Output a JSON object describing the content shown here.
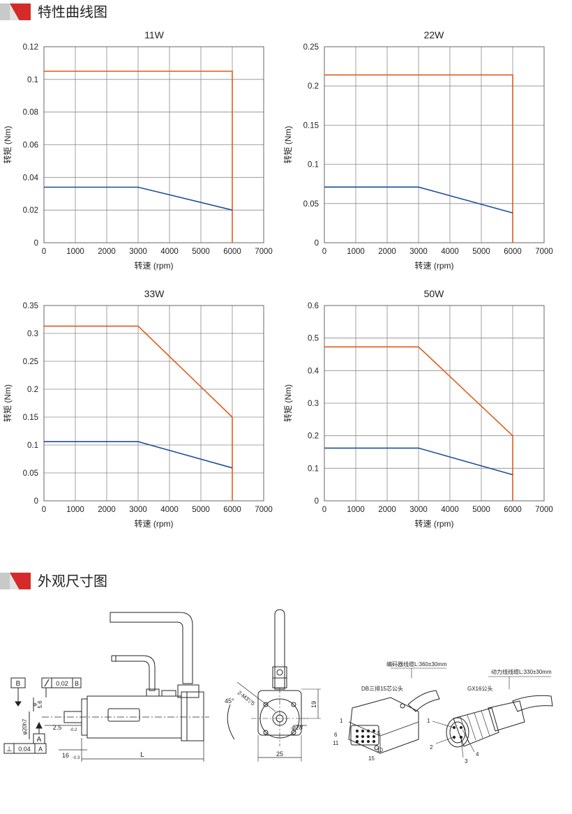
{
  "sections": {
    "curves_title": "特性曲线图",
    "dimensions_title": "外观尺寸图"
  },
  "colors": {
    "rated": "#1f4e9a",
    "peak": "#e05a1a",
    "grid": "#888888",
    "accent": "#d42a2a"
  },
  "chart_data": [
    {
      "type": "line",
      "title": "11W",
      "xlabel": "转速 (rpm)",
      "ylabel": "转矩 (Nm)",
      "xlim": [
        0,
        7000
      ],
      "ylim": [
        0,
        0.12
      ],
      "xticks": [
        "0",
        "1000",
        "2000",
        "3000",
        "4000",
        "5000",
        "6000",
        "7000"
      ],
      "yticks": [
        "0",
        "0.02",
        "0.04",
        "0.06",
        "0.08",
        "0.1",
        "0.12"
      ],
      "ytick_values": [
        0,
        0.02,
        0.04,
        0.06,
        0.08,
        0.1,
        0.12
      ],
      "series": [
        {
          "name": "peak",
          "x": [
            0,
            6000,
            6000
          ],
          "y": [
            0.105,
            0.105,
            0
          ]
        },
        {
          "name": "rated",
          "x": [
            0,
            3000,
            6000
          ],
          "y": [
            0.034,
            0.034,
            0.02
          ]
        }
      ]
    },
    {
      "type": "line",
      "title": "22W",
      "xlabel": "转速 (rpm)",
      "ylabel": "转矩 (Nm)",
      "xlim": [
        0,
        7000
      ],
      "ylim": [
        0,
        0.25
      ],
      "xticks": [
        "0",
        "1000",
        "2000",
        "3000",
        "4000",
        "5000",
        "6000",
        "7000"
      ],
      "yticks": [
        "0",
        "0.05",
        "0.1",
        "0.15",
        "0.2",
        "0.25"
      ],
      "ytick_values": [
        0,
        0.05,
        0.1,
        0.15,
        0.2,
        0.25
      ],
      "series": [
        {
          "name": "peak",
          "x": [
            0,
            6000,
            6000
          ],
          "y": [
            0.214,
            0.214,
            0
          ]
        },
        {
          "name": "rated",
          "x": [
            0,
            3000,
            6000
          ],
          "y": [
            0.071,
            0.071,
            0.038
          ]
        }
      ]
    },
    {
      "type": "line",
      "title": "33W",
      "xlabel": "转速 (rpm)",
      "ylabel": "转矩 (Nm)",
      "xlim": [
        0,
        7000
      ],
      "ylim": [
        0,
        0.35
      ],
      "xticks": [
        "0",
        "1000",
        "2000",
        "3000",
        "4000",
        "5000",
        "6000",
        "7000"
      ],
      "yticks": [
        "0",
        "0.05",
        "0.1",
        "0.15",
        "0.2",
        "0.25",
        "0.3",
        "0.35"
      ],
      "ytick_values": [
        0,
        0.05,
        0.1,
        0.15,
        0.2,
        0.25,
        0.3,
        0.35
      ],
      "series": [
        {
          "name": "peak",
          "x": [
            0,
            3000,
            6000,
            6000
          ],
          "y": [
            0.313,
            0.313,
            0.15,
            0
          ]
        },
        {
          "name": "rated",
          "x": [
            0,
            3000,
            6000
          ],
          "y": [
            0.106,
            0.106,
            0.059
          ]
        }
      ]
    },
    {
      "type": "line",
      "title": "50W",
      "xlabel": "转速 (rpm)",
      "ylabel": "转矩 (Nm)",
      "xlim": [
        0,
        7000
      ],
      "ylim": [
        0,
        0.6
      ],
      "xticks": [
        "0",
        "1000",
        "2000",
        "3000",
        "4000",
        "5000",
        "6000",
        "7000"
      ],
      "yticks": [
        "0",
        "0.1",
        "0.2",
        "0.3",
        "0.4",
        "0.5",
        "0.6"
      ],
      "ytick_values": [
        0,
        0.1,
        0.2,
        0.3,
        0.4,
        0.5,
        0.6
      ],
      "series": [
        {
          "name": "peak",
          "x": [
            0,
            3000,
            6000,
            6000
          ],
          "y": [
            0.473,
            0.473,
            0.2,
            0
          ]
        },
        {
          "name": "rated",
          "x": [
            0,
            3000,
            6000
          ],
          "y": [
            0.162,
            0.162,
            0.08
          ]
        }
      ]
    }
  ],
  "drawing": {
    "datum_b": "B",
    "datum_a": "A",
    "runout_value": "0.02",
    "perp_symbol": "⊥",
    "perp_value": "0.04",
    "dim_shaft_len": "5.6",
    "dim_shaft_dia": "φ20h7",
    "dim_step": "2.5",
    "dim_step_tol": "-0.2",
    "dim_flange": "16",
    "dim_flange_tol": "-0.3",
    "dim_length": "L",
    "dim_holes": "2-M3▽5",
    "dim_angle": "45°",
    "dim_bolt_circle": "φ28",
    "dim_height": "19",
    "dim_width": "25",
    "encoder_cable": "编码器线缆L:360±30mm",
    "encoder_connector": "DB三排15芯公头",
    "power_cable": "动力线线缆L:330±30mm",
    "power_connector": "GX16公头",
    "db_pins": [
      "1",
      "6",
      "11",
      "5",
      "10",
      "15"
    ],
    "gx_pins": [
      "1",
      "2",
      "3",
      "4"
    ]
  }
}
